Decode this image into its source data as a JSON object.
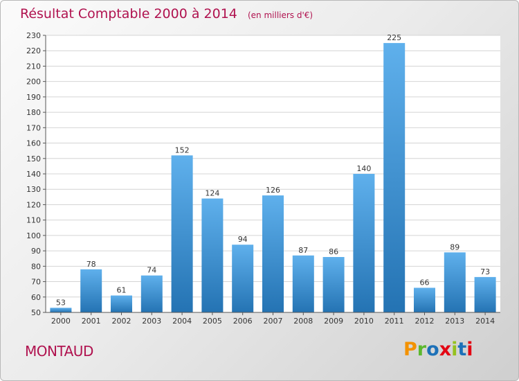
{
  "title": "Résultat Comptable 2000 à 2014",
  "unit_note": "(en milliers d'€)",
  "commune": "MONTAUD",
  "logo": {
    "letters": [
      "P",
      "r",
      "o",
      "x",
      "i",
      "t",
      "i"
    ],
    "colors": [
      "#f39200",
      "#5cb82e",
      "#1d71b8",
      "#e30613",
      "#95c11f",
      "#1d71b8",
      "#e30613"
    ]
  },
  "colors": {
    "title": "#b0124f",
    "bar_light": "#5fb0ec",
    "bar_dark": "#2473b3",
    "grid": "#d4d4d4",
    "axis": "#555555"
  },
  "chart_data": {
    "type": "bar",
    "categories": [
      "2000",
      "2001",
      "2002",
      "2003",
      "2004",
      "2005",
      "2006",
      "2007",
      "2008",
      "2009",
      "2010",
      "2011",
      "2012",
      "2013",
      "2014"
    ],
    "values": [
      53,
      78,
      61,
      74,
      152,
      124,
      94,
      126,
      87,
      86,
      140,
      225,
      66,
      89,
      73
    ],
    "title": "Résultat Comptable 2000 à 2014",
    "subtitle": "(en milliers d'€)",
    "xlabel": "",
    "ylabel": "",
    "ylim": [
      50,
      230
    ],
    "ytick_step": 10,
    "grid": true,
    "legend": "none"
  }
}
